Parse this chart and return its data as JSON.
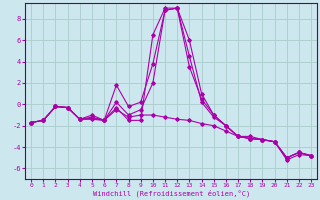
{
  "xlabel": "Windchill (Refroidissement éolien,°C)",
  "bg_color": "#cce8ee",
  "grid_color": "#aacccc",
  "line_color": "#aa00aa",
  "spine_color": "#660066",
  "xlim": [
    -0.5,
    23.5
  ],
  "ylim": [
    -7.0,
    9.5
  ],
  "xticks": [
    0,
    1,
    2,
    3,
    4,
    5,
    6,
    7,
    8,
    9,
    10,
    11,
    12,
    13,
    14,
    15,
    16,
    17,
    18,
    19,
    20,
    21,
    22,
    23
  ],
  "yticks": [
    -6,
    -4,
    -2,
    0,
    2,
    4,
    6,
    8
  ],
  "series": [
    [
      -1.7,
      -1.5,
      -0.2,
      -0.3,
      -1.4,
      -1.4,
      -1.5,
      -0.3,
      -1.5,
      -1.5,
      6.5,
      9.0,
      9.0,
      6.0,
      1.0,
      -1.0,
      -2.0,
      -3.0,
      -3.0,
      -3.3,
      -3.5,
      -5.2,
      -4.7,
      -4.8
    ],
    [
      -1.7,
      -1.5,
      -0.2,
      -0.3,
      -1.4,
      -1.0,
      -1.5,
      1.8,
      -0.2,
      0.2,
      3.8,
      8.8,
      9.0,
      3.5,
      0.5,
      -1.0,
      -2.0,
      -3.0,
      -3.2,
      -3.3,
      -3.5,
      -5.0,
      -4.5,
      -4.8
    ],
    [
      -1.7,
      -1.5,
      -0.2,
      -0.3,
      -1.4,
      -1.2,
      -1.5,
      0.2,
      -1.0,
      -0.5,
      2.0,
      8.8,
      9.0,
      4.5,
      0.2,
      -1.2,
      -2.0,
      -3.0,
      -3.2,
      -3.3,
      -3.5,
      -5.0,
      -4.5,
      -4.8
    ],
    [
      -1.7,
      -1.5,
      -0.2,
      -0.3,
      -1.4,
      -1.3,
      -1.5,
      -0.5,
      -1.2,
      -1.0,
      -1.0,
      -1.2,
      -1.4,
      -1.5,
      -1.8,
      -2.0,
      -2.5,
      -3.0,
      -3.2,
      -3.3,
      -3.5,
      -5.0,
      -4.5,
      -4.8
    ]
  ]
}
